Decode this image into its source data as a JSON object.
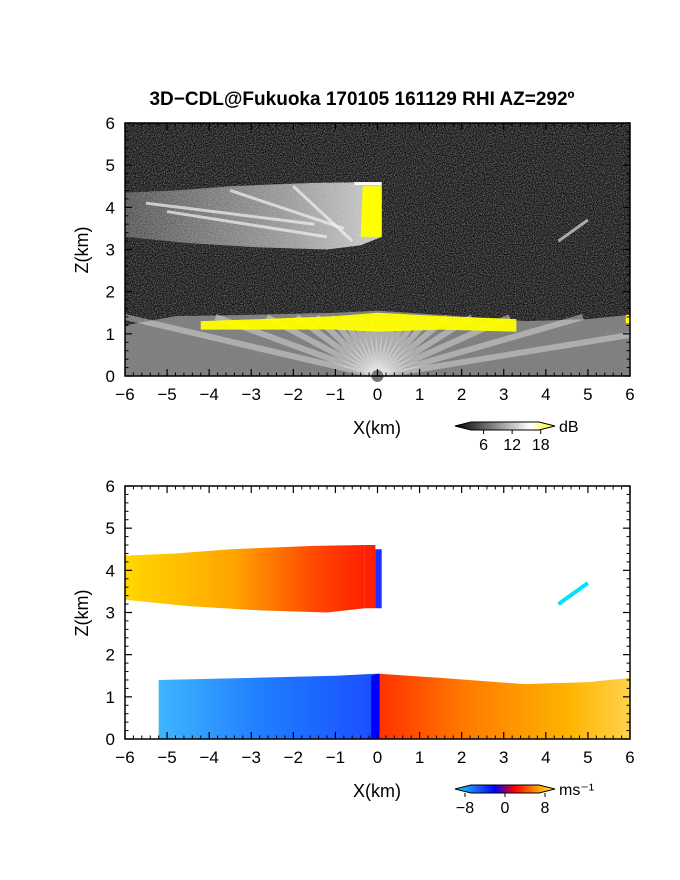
{
  "title": "3D−CDL@Fukuoka 170105 161129 RHI AZ=292º",
  "chart_data": [
    {
      "type": "heatmap",
      "field": "reflectivity",
      "xlabel": "X(km)",
      "ylabel": "Z(km)",
      "xlim": [
        -6,
        6
      ],
      "ylim": [
        0,
        6
      ],
      "x_ticks": [
        "−6",
        "−5",
        "−4",
        "−3",
        "−2",
        "−1",
        "0",
        "1",
        "2",
        "3",
        "4",
        "5",
        "6"
      ],
      "y_ticks": [
        "0",
        "1",
        "2",
        "3",
        "4",
        "5",
        "6"
      ],
      "colorbar": {
        "unit": "dB",
        "ticks": [
          "6",
          "12",
          "18"
        ],
        "range": [
          0,
          21
        ],
        "tick_values": [
          6,
          12,
          18
        ],
        "colors": [
          "#000000",
          "#555555",
          "#aaaaaa",
          "#ffffff",
          "#ffff00"
        ]
      },
      "features": [
        {
          "name": "upper cloud layer",
          "x_range": [
            -6,
            0.1
          ],
          "z_range": [
            3.0,
            4.6
          ]
        },
        {
          "name": "boundary layer echo",
          "x_range": [
            -6,
            6
          ],
          "z_range": [
            0,
            1.4
          ]
        },
        {
          "name": "strong echo (>18 dB) cloud edge",
          "x_range": [
            -0.4,
            0.1
          ],
          "z_range": [
            3.2,
            4.5
          ]
        },
        {
          "name": "strong echo (>18 dB) layer top",
          "x_range": [
            -4.2,
            3.3
          ],
          "z_range": [
            1.05,
            1.5
          ]
        }
      ]
    },
    {
      "type": "heatmap",
      "field": "doppler velocity",
      "xlabel": "X(km)",
      "ylabel": "Z(km)",
      "xlim": [
        -6,
        6
      ],
      "ylim": [
        0,
        6
      ],
      "x_ticks": [
        "−6",
        "−5",
        "−4",
        "−3",
        "−2",
        "−1",
        "0",
        "1",
        "2",
        "3",
        "4",
        "5",
        "6"
      ],
      "y_ticks": [
        "0",
        "1",
        "2",
        "3",
        "4",
        "5",
        "6"
      ],
      "colorbar": {
        "unit": "ms⁻¹",
        "ticks": [
          "−8",
          "0",
          "8"
        ],
        "range": [
          -10,
          10
        ],
        "tick_values": [
          -8,
          0,
          8
        ],
        "colors": [
          "#00e5ff",
          "#1e6bff",
          "#0000ff",
          "#ff0000",
          "#ff8c00",
          "#ffff00"
        ]
      },
      "features": [
        {
          "name": "upper cloud layer",
          "x_range": [
            -6,
            0.1
          ],
          "z_range": [
            3.0,
            4.6
          ],
          "velocity": "positive (+3 to +8)"
        },
        {
          "name": "lower layer left",
          "x_range": [
            -5.2,
            0
          ],
          "z_range": [
            0,
            1.5
          ],
          "velocity": "negative (−8 to −4)"
        },
        {
          "name": "lower layer right",
          "x_range": [
            0,
            6
          ],
          "z_range": [
            0,
            1.55
          ],
          "velocity": "positive (+2 to +8)"
        },
        {
          "name": "isolated streak",
          "x_range": [
            4.3,
            5.0
          ],
          "z_range": [
            3.2,
            3.7
          ],
          "velocity": "−9"
        }
      ]
    }
  ]
}
